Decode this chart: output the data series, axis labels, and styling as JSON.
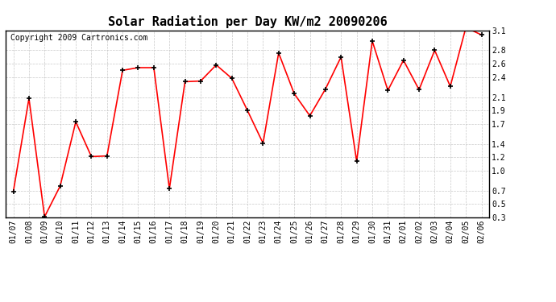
{
  "title": "Solar Radiation per Day KW/m2 20090206",
  "copyright": "Copyright 2009 Cartronics.com",
  "dates": [
    "01/07",
    "01/08",
    "01/09",
    "01/10",
    "01/11",
    "01/12",
    "01/13",
    "01/14",
    "01/15",
    "01/16",
    "01/17",
    "01/18",
    "01/19",
    "01/20",
    "01/21",
    "01/22",
    "01/23",
    "01/24",
    "01/25",
    "01/26",
    "01/27",
    "01/28",
    "01/29",
    "01/30",
    "01/31",
    "02/01",
    "02/02",
    "02/03",
    "02/04",
    "02/05",
    "02/06"
  ],
  "values": [
    0.69,
    2.08,
    0.31,
    0.77,
    1.73,
    1.21,
    1.22,
    2.5,
    2.54,
    2.54,
    0.73,
    2.33,
    2.34,
    2.58,
    2.38,
    1.9,
    1.41,
    2.76,
    2.15,
    1.82,
    2.22,
    2.7,
    1.14,
    2.94,
    2.2,
    2.65,
    2.21,
    2.8,
    2.26,
    3.14,
    3.03
  ],
  "ylim": [
    0.3,
    3.1
  ],
  "yticks": [
    0.3,
    0.5,
    0.7,
    1.0,
    1.2,
    1.4,
    1.7,
    1.9,
    2.1,
    2.4,
    2.6,
    2.8,
    3.1
  ],
  "line_color": "#ff0000",
  "marker": "+",
  "marker_color": "#000000",
  "bg_color": "#ffffff",
  "plot_bg_color": "#ffffff",
  "grid_color": "#bbbbbb",
  "title_fontsize": 11,
  "copyright_fontsize": 7,
  "tick_fontsize": 7,
  "ytick_fontsize": 7
}
